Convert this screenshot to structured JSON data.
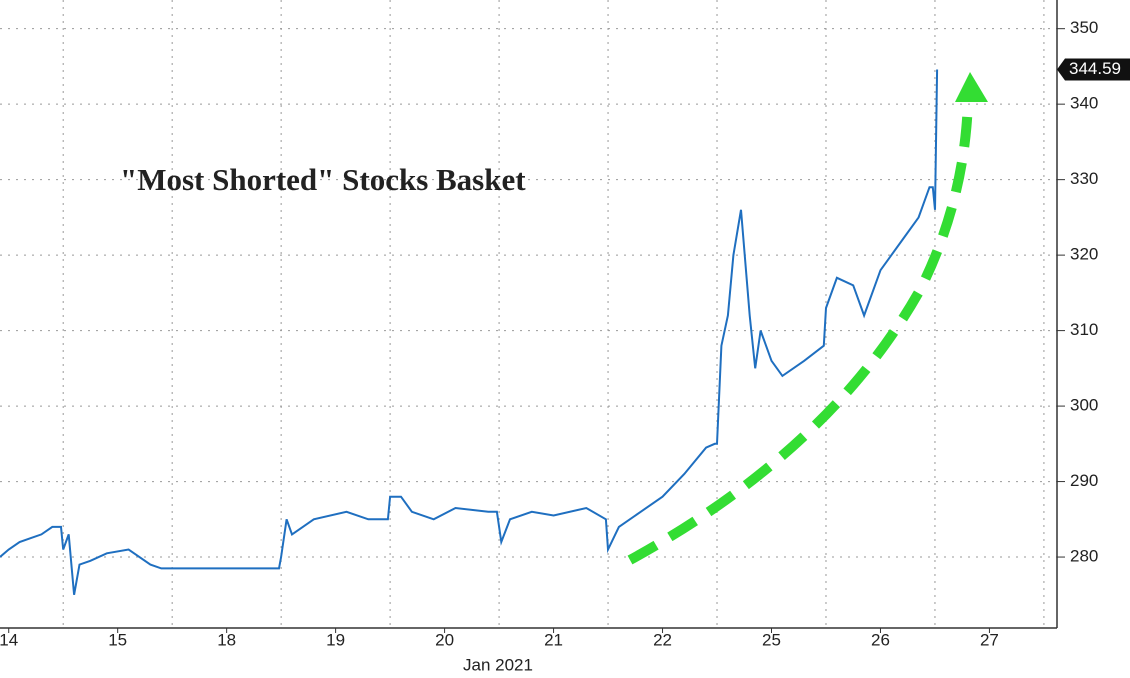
{
  "chart_data": {
    "type": "line",
    "title": "\"Most Shorted\" Stocks Basket",
    "x_label": "Jan 2021",
    "x": [
      0.42,
      0.5,
      0.6,
      0.7,
      0.8,
      0.9,
      0.98,
      1.0,
      1.05,
      1.1,
      1.15,
      1.25,
      1.4,
      1.6,
      1.8,
      1.9,
      2.0,
      2.98,
      3.0,
      3.05,
      3.1,
      3.3,
      3.6,
      3.8,
      3.98,
      4.0,
      4.1,
      4.2,
      4.4,
      4.6,
      4.9,
      4.98,
      5.02,
      5.1,
      5.3,
      5.5,
      5.8,
      5.98,
      6.0,
      6.1,
      6.3,
      6.5,
      6.7,
      6.9,
      6.98,
      7.0,
      7.04,
      7.1,
      7.15,
      7.22,
      7.3,
      7.35,
      7.4,
      7.5,
      7.6,
      7.8,
      7.98,
      8.0,
      8.1,
      8.25,
      8.35,
      8.5,
      8.7,
      8.85,
      8.95,
      8.98,
      9.0,
      9.02
    ],
    "values": [
      280,
      281,
      282,
      282.5,
      283,
      284,
      284,
      281,
      283,
      275,
      279,
      279.5,
      280.5,
      281,
      279,
      278.5,
      278.5,
      278.5,
      280,
      285,
      283,
      285,
      286,
      285,
      285,
      288,
      288,
      286,
      285,
      286.5,
      286,
      286,
      282,
      285,
      286,
      285.5,
      286.5,
      285,
      281,
      284,
      286,
      288,
      291,
      294.5,
      295,
      295,
      308,
      312,
      320,
      326,
      312,
      305,
      310,
      306,
      304,
      306,
      308,
      313,
      317,
      316,
      312,
      318,
      322,
      325,
      329,
      329,
      326,
      344.59
    ],
    "color": "#1f6fc0",
    "xlim": [
      0.42,
      10.12
    ],
    "xticks": [
      {
        "value": 0.5,
        "label": "14"
      },
      {
        "value": 1.5,
        "label": "15"
      },
      {
        "value": 2.5,
        "label": "18"
      },
      {
        "value": 3.5,
        "label": "19"
      },
      {
        "value": 4.5,
        "label": "20"
      },
      {
        "value": 5.5,
        "label": "21"
      },
      {
        "value": 6.5,
        "label": "22"
      },
      {
        "value": 7.5,
        "label": "25"
      },
      {
        "value": 8.5,
        "label": "26"
      },
      {
        "value": 9.5,
        "label": "27"
      }
    ],
    "ylim": [
      270.6,
      353.8
    ],
    "yticks": [
      280,
      290,
      300,
      310,
      320,
      330,
      340,
      350
    ],
    "grid": true
  }
}
